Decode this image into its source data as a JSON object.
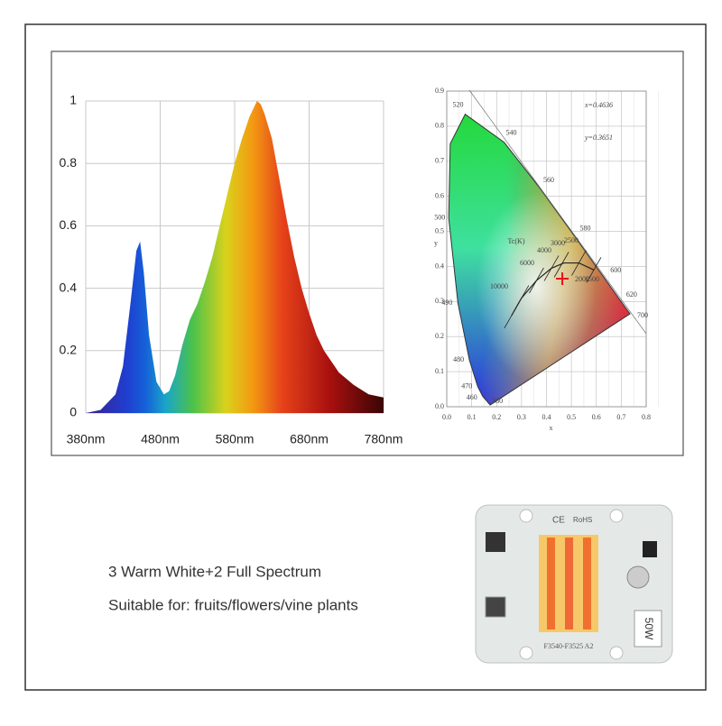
{
  "chart_data": {
    "type": "area",
    "x": [
      380,
      400,
      420,
      430,
      440,
      448,
      453,
      458,
      465,
      475,
      485,
      492,
      500,
      510,
      520,
      530,
      540,
      550,
      560,
      570,
      580,
      590,
      600,
      610,
      615,
      620,
      630,
      640,
      650,
      660,
      670,
      680,
      690,
      700,
      720,
      740,
      760,
      780
    ],
    "values": [
      0,
      0.01,
      0.06,
      0.15,
      0.35,
      0.52,
      0.55,
      0.45,
      0.25,
      0.1,
      0.06,
      0.07,
      0.12,
      0.22,
      0.3,
      0.35,
      0.42,
      0.5,
      0.6,
      0.7,
      0.8,
      0.88,
      0.95,
      1.0,
      0.99,
      0.96,
      0.88,
      0.75,
      0.62,
      0.5,
      0.4,
      0.32,
      0.25,
      0.2,
      0.13,
      0.09,
      0.06,
      0.05
    ],
    "xlim": [
      380,
      780
    ],
    "ylim": [
      0,
      1
    ],
    "xticks": [
      {
        "value": 380,
        "label": "380nm"
      },
      {
        "value": 480,
        "label": "480nm"
      },
      {
        "value": 580,
        "label": "580nm"
      },
      {
        "value": 680,
        "label": "680nm"
      },
      {
        "value": 780,
        "label": "780nm"
      }
    ],
    "yticks": [
      0,
      0.2,
      0.4,
      0.6,
      0.8,
      1
    ],
    "grid": true
  },
  "cie": {
    "annotations": [
      "x=0.4636",
      "y=0.3651"
    ],
    "point_x": 0.4636,
    "point_y": 0.3651,
    "xlim": [
      0,
      0.8
    ],
    "ylim": [
      0,
      0.9
    ],
    "xticks": [
      {
        "value": 0,
        "label": "0.0"
      },
      0.1,
      0.2,
      0.3,
      0.4,
      0.5,
      0.6,
      0.7,
      0.8
    ],
    "yticks": [
      {
        "value": 0,
        "label": "0.0"
      },
      0.1,
      0.2,
      0.3,
      0.4,
      0.5,
      0.6,
      0.7,
      0.8,
      0.9
    ],
    "xlabel": "x",
    "ylabel": "y",
    "wavelength_labels": [
      "380",
      "460",
      "470",
      "480",
      "490",
      "500",
      "520",
      "540",
      "560",
      "580",
      "600",
      "620",
      "700"
    ],
    "cct_title": "Tc(K)",
    "cct_labels": [
      "10000",
      "6000",
      "4000",
      "3000",
      "2500",
      "2000",
      "1500"
    ]
  },
  "text": {
    "line1": "3 Warm White+2 Full Spectrum",
    "line2": "Suitable for: fruits/flowers/vine plants"
  },
  "led": {
    "ce": "CE",
    "rohs": "RoHS",
    "power": "50W",
    "model": "F3540-F3525 A2"
  }
}
